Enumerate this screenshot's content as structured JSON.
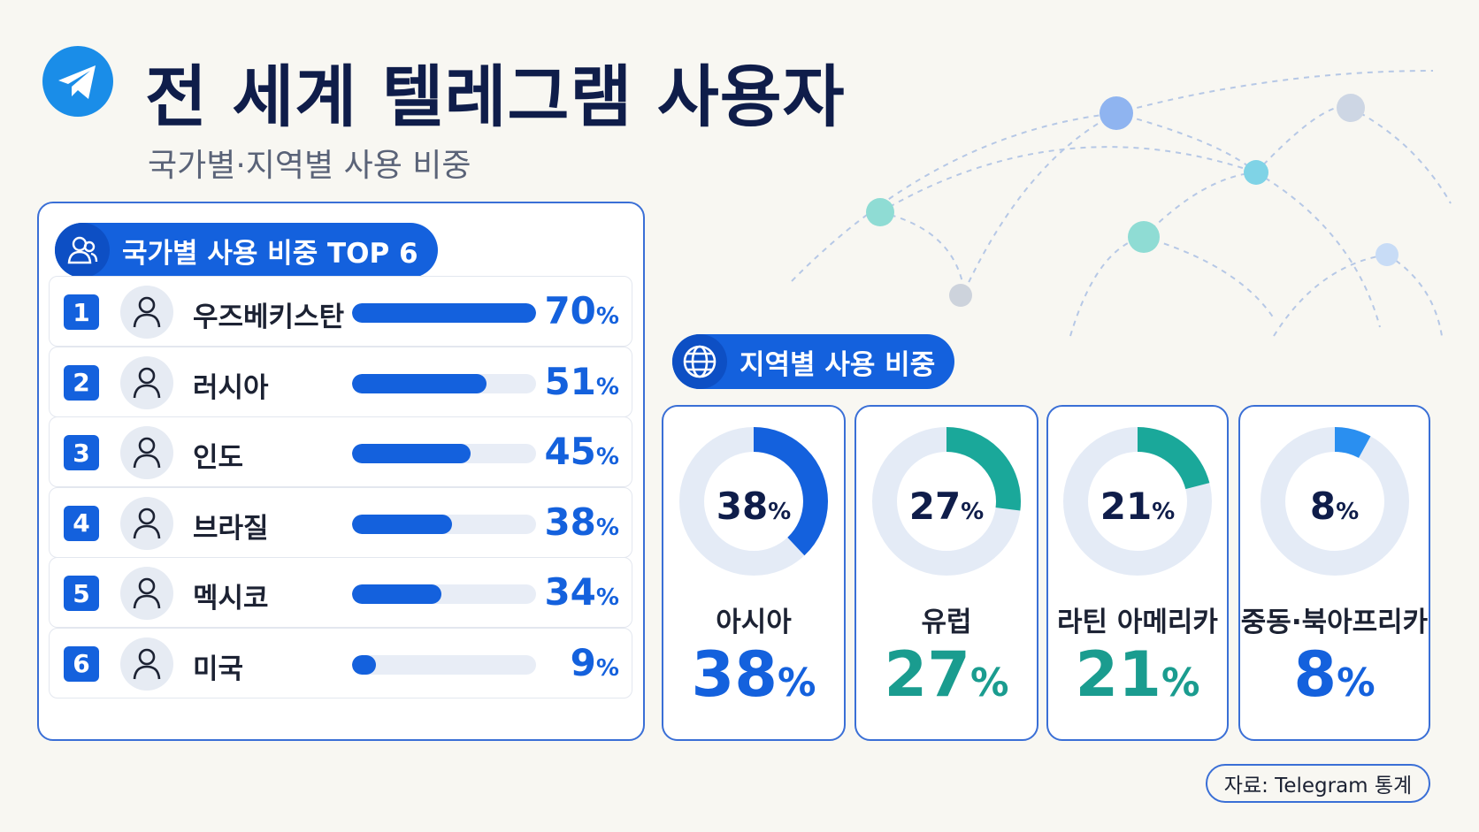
{
  "header": {
    "title": "전 세계 텔레그램 사용자",
    "subtitle": "국가별·지역별 사용 비중",
    "logo_icon": "telegram-paper-plane-icon"
  },
  "country_section": {
    "label": "국가별 사용 비중 TOP 6",
    "icon": "users-icon"
  },
  "region_section": {
    "label": "지역별 사용 비중",
    "icon": "globe-icon"
  },
  "colors": {
    "primary": "#1461dd",
    "teal": "#1aa89a",
    "light_blue": "#2a8ff0",
    "track": "#e8edf6",
    "text_dark": "#0f1d4a"
  },
  "chart_data": [
    {
      "type": "bar",
      "orientation": "horizontal",
      "categories": [
        "우즈베키스탄",
        "러시아",
        "인도",
        "브라질",
        "멕시코",
        "미국"
      ],
      "ranks": [
        "1",
        "2",
        "3",
        "4",
        "5",
        "6"
      ],
      "values": [
        70,
        51,
        45,
        38,
        34,
        9
      ],
      "labels": [
        "70",
        "51",
        "45",
        "38",
        "34",
        "9"
      ],
      "unit": "%",
      "xlim": [
        0,
        70
      ]
    },
    {
      "type": "pie",
      "style": "donut",
      "categories": [
        "아시아",
        "유럽",
        "라틴 아메리카",
        "중동·북아프리카"
      ],
      "values": [
        38,
        27,
        21,
        8
      ],
      "labels": [
        "38",
        "27",
        "21",
        "8"
      ],
      "unit": "%",
      "colors": [
        "#1461dd",
        "#1aa89a",
        "#1aa89a",
        "#2a8ff0"
      ],
      "big_colors": [
        "#1461dd",
        "#1a9c8f",
        "#1a9c8f",
        "#1461dd"
      ]
    }
  ],
  "source": "자료: Telegram 통계"
}
